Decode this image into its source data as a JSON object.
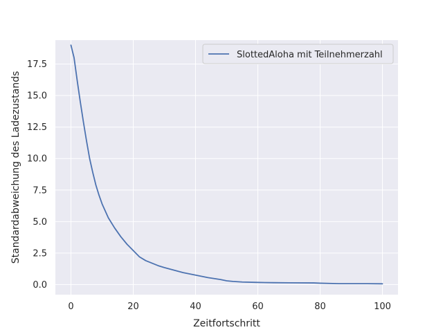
{
  "chart_data": {
    "type": "line",
    "title": "",
    "xlabel": "Zeitfortschritt",
    "ylabel": "Standardabweichung des Ladezustands",
    "xlim": [
      -5,
      105
    ],
    "ylim": [
      -0.8,
      19.4
    ],
    "xticks": [
      0,
      20,
      40,
      60,
      80,
      100
    ],
    "yticks": [
      0.0,
      2.5,
      5.0,
      7.5,
      10.0,
      12.5,
      15.0,
      17.5
    ],
    "xtick_labels": [
      "0",
      "20",
      "40",
      "60",
      "80",
      "100"
    ],
    "ytick_labels": [
      "0.0",
      "2.5",
      "5.0",
      "7.5",
      "10.0",
      "12.5",
      "15.0",
      "17.5"
    ],
    "grid": true,
    "legend_position": "top-right",
    "background_color": "#eaeaf2",
    "grid_color": "#ffffff",
    "series": [
      {
        "name": "SlottedAloha mit Teilnehmerzahl",
        "color": "#4c72b0",
        "x": [
          0,
          1,
          2,
          3,
          4,
          5,
          6,
          7,
          8,
          9,
          10,
          12,
          14,
          16,
          18,
          20,
          22,
          24,
          26,
          28,
          30,
          33,
          36,
          40,
          44,
          48,
          50,
          52,
          55,
          60,
          65,
          70,
          78,
          80,
          86,
          90,
          95,
          100
        ],
        "y": [
          19.0,
          18.0,
          16.2,
          14.5,
          12.9,
          11.4,
          10.0,
          8.9,
          7.9,
          7.1,
          6.4,
          5.3,
          4.5,
          3.8,
          3.2,
          2.7,
          2.2,
          1.9,
          1.7,
          1.5,
          1.35,
          1.15,
          0.95,
          0.75,
          0.55,
          0.4,
          0.3,
          0.25,
          0.2,
          0.17,
          0.15,
          0.14,
          0.13,
          0.11,
          0.07,
          0.07,
          0.07,
          0.06
        ]
      }
    ]
  }
}
